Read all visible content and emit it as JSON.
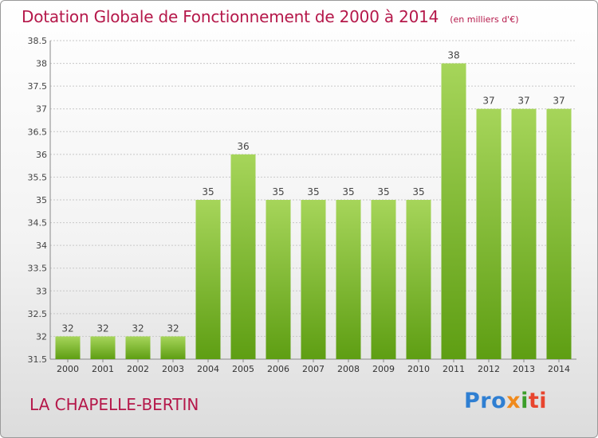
{
  "title": "Dotation Globale de Fonctionnement de 2000 à 2014",
  "unit_note": "(en milliers d'€)",
  "commune": "LA CHAPELLE-BERTIN",
  "logo": {
    "p1": "Pro",
    "p2": "x",
    "p3": "i",
    "p4": "ti"
  },
  "colors": {
    "title": "#b5184a",
    "bar_light": "#a6d55a",
    "bar_dark": "#5e9e13",
    "grid": "#c8c8c8"
  },
  "chart_data": {
    "type": "bar",
    "title": "Dotation Globale de Fonctionnement de 2000 à 2014",
    "xlabel": "",
    "ylabel": "",
    "categories": [
      "2000",
      "2001",
      "2002",
      "2003",
      "2004",
      "2005",
      "2006",
      "2007",
      "2008",
      "2009",
      "2010",
      "2011",
      "2012",
      "2013",
      "2014"
    ],
    "values": [
      32,
      32,
      32,
      32,
      35,
      36,
      35,
      35,
      35,
      35,
      35,
      38,
      37,
      37,
      37
    ],
    "data_labels": [
      "32",
      "32",
      "32",
      "32",
      "35",
      "36",
      "35",
      "35",
      "35",
      "35",
      "35",
      "38",
      "37",
      "37",
      "37"
    ],
    "ylim": [
      31.5,
      38.5
    ],
    "yticks": [
      31.5,
      32,
      32.5,
      33,
      33.5,
      34,
      34.5,
      35,
      35.5,
      36,
      36.5,
      37,
      37.5,
      38,
      38.5
    ],
    "ytick_labels": [
      "31.5",
      "32",
      "32.5",
      "33",
      "33.5",
      "34",
      "34.5",
      "35",
      "35.5",
      "36",
      "36.5",
      "37",
      "37.5",
      "38",
      "38.5"
    ],
    "grid": true
  }
}
